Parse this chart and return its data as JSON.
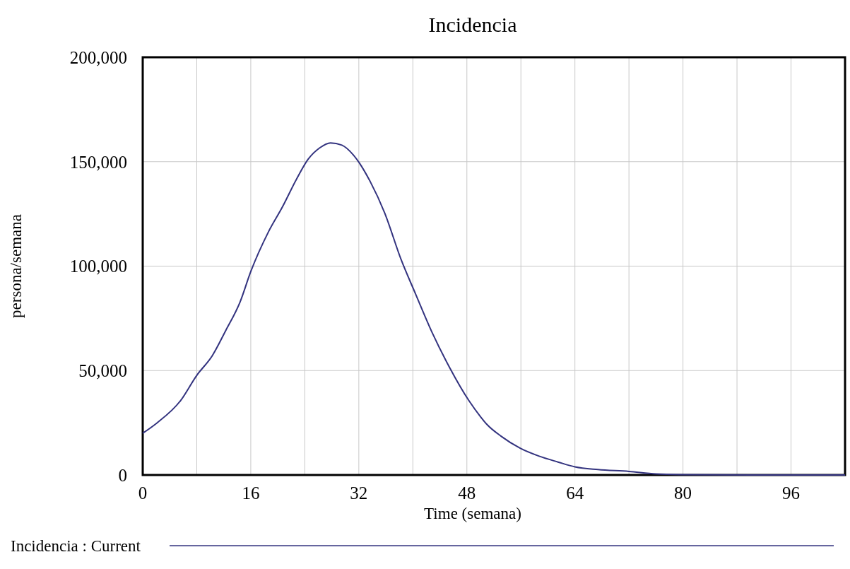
{
  "chart_data": {
    "type": "line",
    "title": "Incidencia",
    "xlabel": "Time (semana)",
    "ylabel": "persona/semana",
    "xlim": [
      0,
      104
    ],
    "ylim": [
      0,
      200000
    ],
    "xticks": [
      0,
      {
        "value": 8,
        "label": null
      },
      16,
      {
        "value": 24,
        "label": null
      },
      32,
      {
        "value": 40,
        "label": null
      },
      48,
      {
        "value": 56,
        "label": null
      },
      64,
      {
        "value": 72,
        "label": null
      },
      80,
      {
        "value": 88,
        "label": null
      },
      96,
      {
        "value": 104,
        "label": null
      }
    ],
    "yticks": [
      {
        "value": 0,
        "label": "0"
      },
      {
        "value": 50000,
        "label": "50,000"
      },
      {
        "value": 100000,
        "label": "100,000"
      },
      {
        "value": 150000,
        "label": "150,000"
      },
      {
        "value": 200000,
        "label": "200,000"
      }
    ],
    "grid": true,
    "legend": "bottom",
    "marker": "none",
    "line_style": "solid",
    "series": [
      {
        "name": "Incidencia : Current",
        "color": "#33337f",
        "x": [
          0,
          2.1,
          5.6,
          8,
          10.3,
          12.3,
          14.4,
          16,
          18.6,
          20.7,
          22.8,
          24.5,
          26.2,
          27.8,
          29.5,
          31.2,
          33.7,
          35.8,
          38.3,
          40.4,
          42.9,
          45.4,
          48.3,
          50,
          51,
          53.1,
          55.9,
          58.7,
          61.5,
          64,
          67.4,
          72,
          76,
          80,
          90,
          104
        ],
        "values": [
          20000,
          24900,
          35600,
          47700,
          57100,
          69200,
          82700,
          97400,
          116300,
          128400,
          141800,
          151200,
          156600,
          159000,
          157900,
          153200,
          140400,
          125700,
          102800,
          86700,
          67900,
          51700,
          35600,
          28000,
          24100,
          18500,
          12800,
          9000,
          6200,
          3900,
          2600,
          1700,
          500,
          200,
          0,
          0
        ]
      }
    ]
  }
}
